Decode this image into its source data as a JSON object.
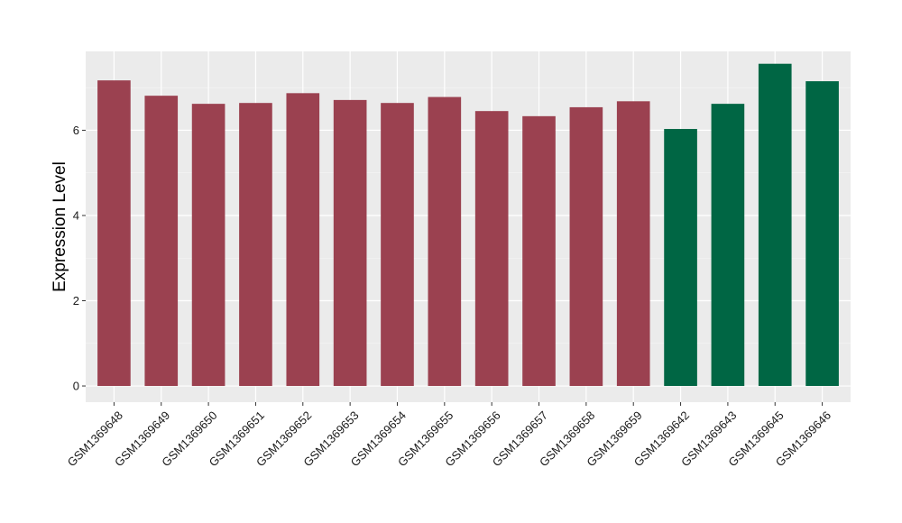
{
  "chart_data": {
    "type": "bar",
    "ylabel": "Expression Level",
    "xlabel": "",
    "ylim": [
      -0.38,
      7.85
    ],
    "yticks": [
      0,
      2,
      4,
      6
    ],
    "grid": true,
    "panel_background": "#ebebeb",
    "categories": [
      "GSM1369648",
      "GSM1369649",
      "GSM1369650",
      "GSM1369651",
      "GSM1369652",
      "GSM1369653",
      "GSM1369654",
      "GSM1369655",
      "GSM1369656",
      "GSM1369657",
      "GSM1369658",
      "GSM1369659",
      "GSM1369642",
      "GSM1369643",
      "GSM1369645",
      "GSM1369646"
    ],
    "values": [
      7.17,
      6.81,
      6.62,
      6.64,
      6.87,
      6.71,
      6.64,
      6.78,
      6.45,
      6.33,
      6.54,
      6.68,
      6.03,
      6.62,
      7.56,
      7.15
    ],
    "groups": [
      "a",
      "a",
      "a",
      "a",
      "a",
      "a",
      "a",
      "a",
      "a",
      "a",
      "a",
      "a",
      "b",
      "b",
      "b",
      "b"
    ],
    "colors": {
      "a": "#9b4150",
      "b": "#006644"
    }
  }
}
